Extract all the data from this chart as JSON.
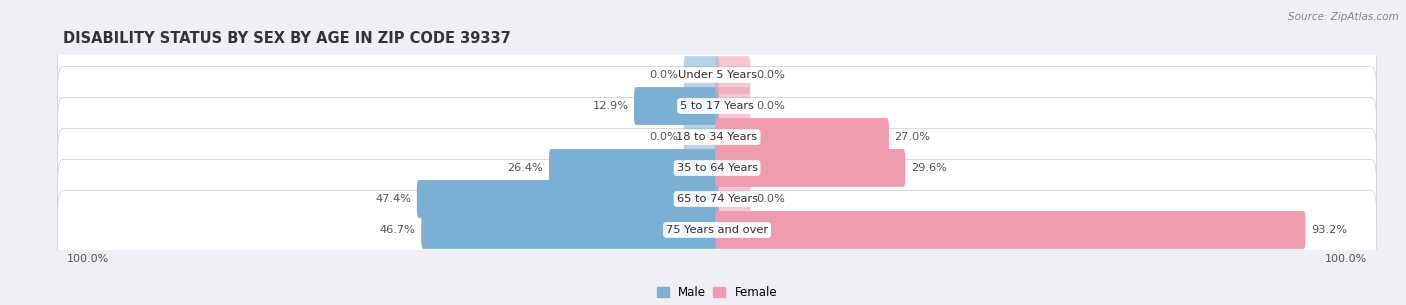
{
  "title": "DISABILITY STATUS BY SEX BY AGE IN ZIP CODE 39337",
  "source": "Source: ZipAtlas.com",
  "categories": [
    "Under 5 Years",
    "5 to 17 Years",
    "18 to 34 Years",
    "35 to 64 Years",
    "65 to 74 Years",
    "75 Years and over"
  ],
  "male_values": [
    0.0,
    12.9,
    0.0,
    26.4,
    47.4,
    46.7
  ],
  "female_values": [
    0.0,
    0.0,
    27.0,
    29.6,
    0.0,
    93.2
  ],
  "male_color": "#7bafd4",
  "female_color": "#f09cb0",
  "bg_color": "#f0eff4",
  "row_bg_color": "#ffffff",
  "xlim": 100,
  "bar_height": 0.62,
  "title_fontsize": 10.5,
  "label_fontsize": 8.2,
  "tick_fontsize": 8,
  "legend_fontsize": 8.5,
  "stub_val": 5.0
}
